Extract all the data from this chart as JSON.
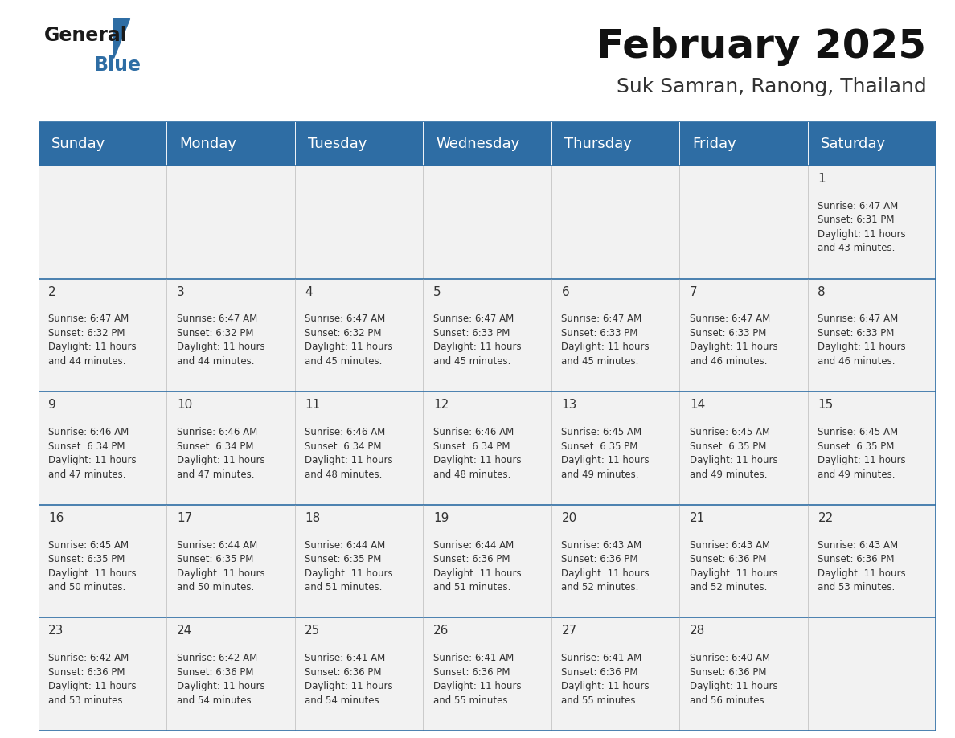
{
  "title": "February 2025",
  "subtitle": "Suk Samran, Ranong, Thailand",
  "header_bg_color": "#2E6DA4",
  "header_text_color": "#FFFFFF",
  "cell_bg_color": "#F2F2F2",
  "border_color": "#2E6DA4",
  "text_color": "#333333",
  "day_headers": [
    "Sunday",
    "Monday",
    "Tuesday",
    "Wednesday",
    "Thursday",
    "Friday",
    "Saturday"
  ],
  "weeks": [
    [
      {
        "day": "",
        "info": ""
      },
      {
        "day": "",
        "info": ""
      },
      {
        "day": "",
        "info": ""
      },
      {
        "day": "",
        "info": ""
      },
      {
        "day": "",
        "info": ""
      },
      {
        "day": "",
        "info": ""
      },
      {
        "day": "1",
        "info": "Sunrise: 6:47 AM\nSunset: 6:31 PM\nDaylight: 11 hours\nand 43 minutes."
      }
    ],
    [
      {
        "day": "2",
        "info": "Sunrise: 6:47 AM\nSunset: 6:32 PM\nDaylight: 11 hours\nand 44 minutes."
      },
      {
        "day": "3",
        "info": "Sunrise: 6:47 AM\nSunset: 6:32 PM\nDaylight: 11 hours\nand 44 minutes."
      },
      {
        "day": "4",
        "info": "Sunrise: 6:47 AM\nSunset: 6:32 PM\nDaylight: 11 hours\nand 45 minutes."
      },
      {
        "day": "5",
        "info": "Sunrise: 6:47 AM\nSunset: 6:33 PM\nDaylight: 11 hours\nand 45 minutes."
      },
      {
        "day": "6",
        "info": "Sunrise: 6:47 AM\nSunset: 6:33 PM\nDaylight: 11 hours\nand 45 minutes."
      },
      {
        "day": "7",
        "info": "Sunrise: 6:47 AM\nSunset: 6:33 PM\nDaylight: 11 hours\nand 46 minutes."
      },
      {
        "day": "8",
        "info": "Sunrise: 6:47 AM\nSunset: 6:33 PM\nDaylight: 11 hours\nand 46 minutes."
      }
    ],
    [
      {
        "day": "9",
        "info": "Sunrise: 6:46 AM\nSunset: 6:34 PM\nDaylight: 11 hours\nand 47 minutes."
      },
      {
        "day": "10",
        "info": "Sunrise: 6:46 AM\nSunset: 6:34 PM\nDaylight: 11 hours\nand 47 minutes."
      },
      {
        "day": "11",
        "info": "Sunrise: 6:46 AM\nSunset: 6:34 PM\nDaylight: 11 hours\nand 48 minutes."
      },
      {
        "day": "12",
        "info": "Sunrise: 6:46 AM\nSunset: 6:34 PM\nDaylight: 11 hours\nand 48 minutes."
      },
      {
        "day": "13",
        "info": "Sunrise: 6:45 AM\nSunset: 6:35 PM\nDaylight: 11 hours\nand 49 minutes."
      },
      {
        "day": "14",
        "info": "Sunrise: 6:45 AM\nSunset: 6:35 PM\nDaylight: 11 hours\nand 49 minutes."
      },
      {
        "day": "15",
        "info": "Sunrise: 6:45 AM\nSunset: 6:35 PM\nDaylight: 11 hours\nand 49 minutes."
      }
    ],
    [
      {
        "day": "16",
        "info": "Sunrise: 6:45 AM\nSunset: 6:35 PM\nDaylight: 11 hours\nand 50 minutes."
      },
      {
        "day": "17",
        "info": "Sunrise: 6:44 AM\nSunset: 6:35 PM\nDaylight: 11 hours\nand 50 minutes."
      },
      {
        "day": "18",
        "info": "Sunrise: 6:44 AM\nSunset: 6:35 PM\nDaylight: 11 hours\nand 51 minutes."
      },
      {
        "day": "19",
        "info": "Sunrise: 6:44 AM\nSunset: 6:36 PM\nDaylight: 11 hours\nand 51 minutes."
      },
      {
        "day": "20",
        "info": "Sunrise: 6:43 AM\nSunset: 6:36 PM\nDaylight: 11 hours\nand 52 minutes."
      },
      {
        "day": "21",
        "info": "Sunrise: 6:43 AM\nSunset: 6:36 PM\nDaylight: 11 hours\nand 52 minutes."
      },
      {
        "day": "22",
        "info": "Sunrise: 6:43 AM\nSunset: 6:36 PM\nDaylight: 11 hours\nand 53 minutes."
      }
    ],
    [
      {
        "day": "23",
        "info": "Sunrise: 6:42 AM\nSunset: 6:36 PM\nDaylight: 11 hours\nand 53 minutes."
      },
      {
        "day": "24",
        "info": "Sunrise: 6:42 AM\nSunset: 6:36 PM\nDaylight: 11 hours\nand 54 minutes."
      },
      {
        "day": "25",
        "info": "Sunrise: 6:41 AM\nSunset: 6:36 PM\nDaylight: 11 hours\nand 54 minutes."
      },
      {
        "day": "26",
        "info": "Sunrise: 6:41 AM\nSunset: 6:36 PM\nDaylight: 11 hours\nand 55 minutes."
      },
      {
        "day": "27",
        "info": "Sunrise: 6:41 AM\nSunset: 6:36 PM\nDaylight: 11 hours\nand 55 minutes."
      },
      {
        "day": "28",
        "info": "Sunrise: 6:40 AM\nSunset: 6:36 PM\nDaylight: 11 hours\nand 56 minutes."
      },
      {
        "day": "",
        "info": ""
      }
    ]
  ],
  "logo_text_general": "General",
  "logo_text_blue": "Blue",
  "logo_triangle_color": "#2E6DA4",
  "title_fontsize": 36,
  "subtitle_fontsize": 18,
  "header_fontsize": 13,
  "day_num_fontsize": 11,
  "info_fontsize": 8.5
}
